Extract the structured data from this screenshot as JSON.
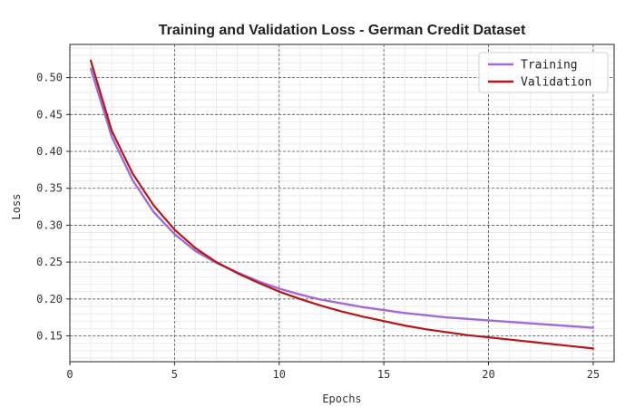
{
  "chart_data": {
    "type": "line",
    "title": "Training and Validation Loss - German Credit Dataset",
    "xlabel": "Epochs",
    "ylabel": "Loss",
    "xlim": [
      0,
      26
    ],
    "ylim": [
      0.115,
      0.545
    ],
    "xticks": [
      0,
      5,
      10,
      15,
      20,
      25
    ],
    "xtick_labels": [
      "0",
      "5",
      "10",
      "15",
      "20",
      "25"
    ],
    "yticks": [
      0.15,
      0.2,
      0.25,
      0.3,
      0.35,
      0.4,
      0.45,
      0.5
    ],
    "ytick_labels": [
      "0.15",
      "0.20",
      "0.25",
      "0.30",
      "0.35",
      "0.40",
      "0.45",
      "0.50"
    ],
    "grid": true,
    "minor_grid": true,
    "legend_position": "top-right",
    "x": [
      1,
      2,
      3,
      4,
      5,
      6,
      7,
      8,
      9,
      10,
      11,
      12,
      13,
      14,
      15,
      16,
      17,
      18,
      19,
      20,
      21,
      22,
      23,
      24,
      25
    ],
    "series": [
      {
        "name": "Training",
        "color": "#a36ad6",
        "values": [
          0.512,
          0.42,
          0.361,
          0.318,
          0.288,
          0.265,
          0.249,
          0.236,
          0.224,
          0.214,
          0.206,
          0.199,
          0.194,
          0.189,
          0.185,
          0.181,
          0.178,
          0.175,
          0.173,
          0.171,
          0.169,
          0.167,
          0.165,
          0.163,
          0.161
        ]
      },
      {
        "name": "Validation",
        "color": "#b51616",
        "values": [
          0.523,
          0.428,
          0.37,
          0.327,
          0.294,
          0.269,
          0.25,
          0.235,
          0.222,
          0.21,
          0.2,
          0.191,
          0.183,
          0.176,
          0.17,
          0.164,
          0.159,
          0.155,
          0.151,
          0.148,
          0.145,
          0.142,
          0.139,
          0.136,
          0.133
        ]
      }
    ]
  }
}
